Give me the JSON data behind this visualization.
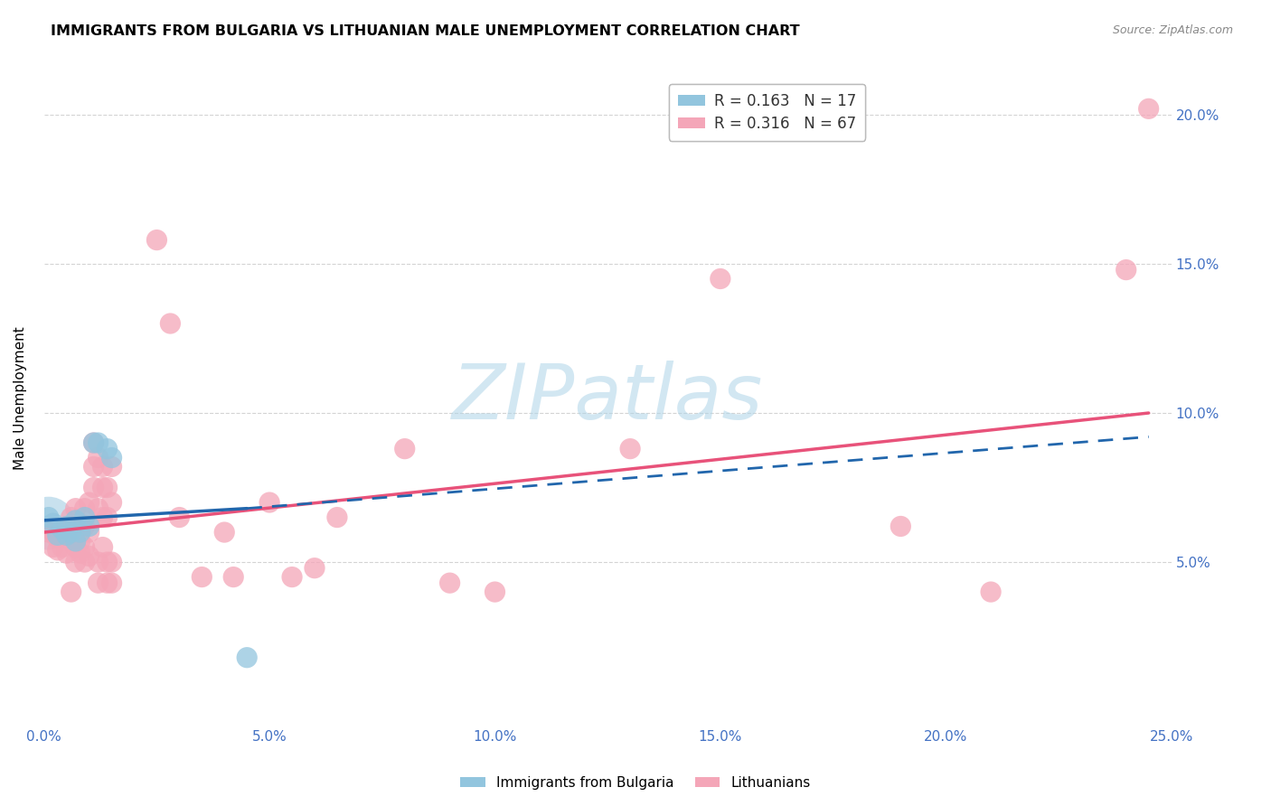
{
  "title": "IMMIGRANTS FROM BULGARIA VS LITHUANIAN MALE UNEMPLOYMENT CORRELATION CHART",
  "source": "Source: ZipAtlas.com",
  "ylabel": "Male Unemployment",
  "xlim": [
    0.0,
    0.25
  ],
  "ylim": [
    -0.005,
    0.215
  ],
  "xtick_vals": [
    0.0,
    0.05,
    0.1,
    0.15,
    0.2,
    0.25
  ],
  "ytick_vals": [
    0.05,
    0.1,
    0.15,
    0.2
  ],
  "ytick_labels": [
    "5.0%",
    "10.0%",
    "15.0%",
    "20.0%"
  ],
  "xtick_labels": [
    "0.0%",
    "5.0%",
    "10.0%",
    "15.0%",
    "20.0%",
    "25.0%"
  ],
  "legend1_label": "R = 0.163   N = 17",
  "legend2_label": "R = 0.316   N = 67",
  "legend_bottom1": "Immigrants from Bulgaria",
  "legend_bottom2": "Lithuanians",
  "blue_color": "#92c5de",
  "pink_color": "#f4a6b8",
  "blue_line_color": "#2166ac",
  "pink_line_color": "#e8527a",
  "blue_scatter": [
    [
      0.001,
      0.065
    ],
    [
      0.002,
      0.063
    ],
    [
      0.003,
      0.059
    ],
    [
      0.004,
      0.061
    ],
    [
      0.005,
      0.059
    ],
    [
      0.005,
      0.062
    ],
    [
      0.006,
      0.06
    ],
    [
      0.007,
      0.057
    ],
    [
      0.007,
      0.064
    ],
    [
      0.008,
      0.06
    ],
    [
      0.009,
      0.065
    ],
    [
      0.01,
      0.062
    ],
    [
      0.011,
      0.09
    ],
    [
      0.012,
      0.09
    ],
    [
      0.014,
      0.088
    ],
    [
      0.015,
      0.085
    ],
    [
      0.045,
      0.018
    ]
  ],
  "pink_scatter": [
    [
      0.001,
      0.06
    ],
    [
      0.002,
      0.06
    ],
    [
      0.002,
      0.055
    ],
    [
      0.003,
      0.058
    ],
    [
      0.003,
      0.054
    ],
    [
      0.004,
      0.06
    ],
    [
      0.004,
      0.055
    ],
    [
      0.005,
      0.062
    ],
    [
      0.005,
      0.058
    ],
    [
      0.005,
      0.053
    ],
    [
      0.006,
      0.065
    ],
    [
      0.006,
      0.059
    ],
    [
      0.006,
      0.04
    ],
    [
      0.007,
      0.068
    ],
    [
      0.007,
      0.062
    ],
    [
      0.007,
      0.058
    ],
    [
      0.007,
      0.055
    ],
    [
      0.007,
      0.05
    ],
    [
      0.008,
      0.063
    ],
    [
      0.008,
      0.06
    ],
    [
      0.008,
      0.057
    ],
    [
      0.008,
      0.053
    ],
    [
      0.009,
      0.068
    ],
    [
      0.009,
      0.062
    ],
    [
      0.009,
      0.055
    ],
    [
      0.009,
      0.05
    ],
    [
      0.01,
      0.07
    ],
    [
      0.01,
      0.06
    ],
    [
      0.01,
      0.052
    ],
    [
      0.011,
      0.09
    ],
    [
      0.011,
      0.082
    ],
    [
      0.011,
      0.075
    ],
    [
      0.012,
      0.085
    ],
    [
      0.012,
      0.068
    ],
    [
      0.012,
      0.05
    ],
    [
      0.012,
      0.043
    ],
    [
      0.013,
      0.082
    ],
    [
      0.013,
      0.075
    ],
    [
      0.013,
      0.065
    ],
    [
      0.013,
      0.055
    ],
    [
      0.014,
      0.075
    ],
    [
      0.014,
      0.065
    ],
    [
      0.014,
      0.05
    ],
    [
      0.014,
      0.043
    ],
    [
      0.015,
      0.082
    ],
    [
      0.015,
      0.07
    ],
    [
      0.015,
      0.05
    ],
    [
      0.015,
      0.043
    ],
    [
      0.025,
      0.158
    ],
    [
      0.028,
      0.13
    ],
    [
      0.03,
      0.065
    ],
    [
      0.035,
      0.045
    ],
    [
      0.04,
      0.06
    ],
    [
      0.042,
      0.045
    ],
    [
      0.05,
      0.07
    ],
    [
      0.055,
      0.045
    ],
    [
      0.06,
      0.048
    ],
    [
      0.065,
      0.065
    ],
    [
      0.08,
      0.088
    ],
    [
      0.09,
      0.043
    ],
    [
      0.1,
      0.04
    ],
    [
      0.13,
      0.088
    ],
    [
      0.15,
      0.145
    ],
    [
      0.19,
      0.062
    ],
    [
      0.21,
      0.04
    ],
    [
      0.24,
      0.148
    ],
    [
      0.245,
      0.202
    ]
  ],
  "blue_trendline_solid": [
    [
      0.0,
      0.064
    ],
    [
      0.045,
      0.068
    ]
  ],
  "blue_trendline_dashed": [
    [
      0.045,
      0.068
    ],
    [
      0.245,
      0.092
    ]
  ],
  "pink_trendline": [
    [
      0.0,
      0.06
    ],
    [
      0.245,
      0.1
    ]
  ],
  "watermark_text": "ZIPatlas",
  "watermark_color": "#aed4e8",
  "title_fontsize": 11.5,
  "tick_label_color": "#4472c4",
  "right_tick_color": "#4472c4"
}
